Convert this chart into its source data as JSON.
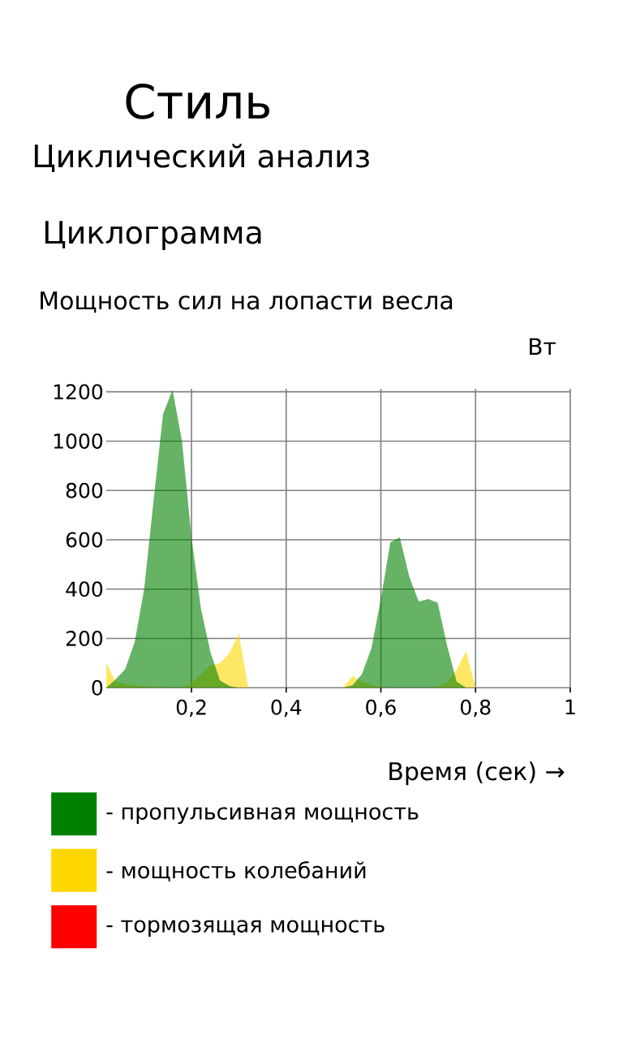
{
  "chart_data": {
    "type": "area",
    "title": "Циклограмма",
    "subtitle": "Мощность сил на лопасти весла",
    "annotations": [
      "Стиль",
      "Циклический анализ"
    ],
    "xlabel": "Время (сек) →",
    "ylabel": "Вт",
    "x": [
      0.02,
      0.04,
      0.06,
      0.08,
      0.1,
      0.12,
      0.14,
      0.16,
      0.18,
      0.2,
      0.22,
      0.24,
      0.26,
      0.28,
      0.3,
      0.32,
      0.34,
      0.36,
      0.38,
      0.4,
      0.42,
      0.44,
      0.46,
      0.48,
      0.5,
      0.52,
      0.54,
      0.56,
      0.58,
      0.6,
      0.62,
      0.64,
      0.66,
      0.68,
      0.7,
      0.72,
      0.74,
      0.76,
      0.78,
      0.8,
      0.82,
      0.84,
      0.86,
      0.88,
      0.9,
      0.92,
      0.94,
      0.96,
      0.98,
      1.0
    ],
    "series": [
      {
        "name": "- пропульсивная мощность",
        "color": "#008000",
        "values": [
          0,
          35,
          75,
          185,
          400,
          760,
          1110,
          1208,
          1000,
          610,
          320,
          145,
          30,
          8,
          0,
          0,
          0,
          0,
          0,
          0,
          0,
          0,
          0,
          0,
          0,
          0,
          10,
          55,
          160,
          360,
          590,
          610,
          450,
          350,
          360,
          345,
          170,
          25,
          0,
          0,
          0,
          0,
          0,
          0,
          0,
          0,
          0,
          0,
          0,
          0
        ]
      },
      {
        "name": "- мощность колебаний",
        "color": "#ffd700",
        "values": [
          100,
          25,
          15,
          10,
          6,
          4,
          2,
          0,
          0,
          18,
          55,
          90,
          100,
          140,
          220,
          0,
          0,
          0,
          0,
          0,
          0,
          0,
          0,
          0,
          0,
          0,
          48,
          25,
          12,
          3,
          0,
          0,
          0,
          0,
          0,
          4,
          24,
          73,
          150,
          0,
          0,
          0,
          0,
          0,
          0,
          0,
          0,
          0,
          0,
          0
        ]
      },
      {
        "name": "- тормозящая мощность",
        "color": "#ff0000",
        "values": [
          null,
          null,
          null,
          null,
          null,
          null,
          null,
          null,
          null,
          null,
          null,
          null,
          null,
          null,
          null,
          null,
          null,
          null,
          null,
          null,
          null,
          null,
          null,
          null,
          null,
          null,
          null,
          null,
          null,
          null,
          null,
          null,
          null,
          null,
          null,
          null,
          null,
          null,
          null,
          null,
          null,
          null,
          null,
          null,
          null,
          null,
          null,
          null,
          null,
          null
        ]
      }
    ],
    "xlim": [
      0.02,
      1
    ],
    "ylim": [
      0,
      1212
    ],
    "xticks": [
      {
        "value": 0.2,
        "label": "0,2"
      },
      {
        "value": 0.4,
        "label": "0,4"
      },
      {
        "value": 0.6,
        "label": "0,6"
      },
      {
        "value": 0.8,
        "label": "0,8"
      },
      1
    ],
    "yticks": [
      0,
      200,
      400,
      600,
      800,
      1000,
      1200
    ],
    "grid": true,
    "legend": "bottom left"
  }
}
